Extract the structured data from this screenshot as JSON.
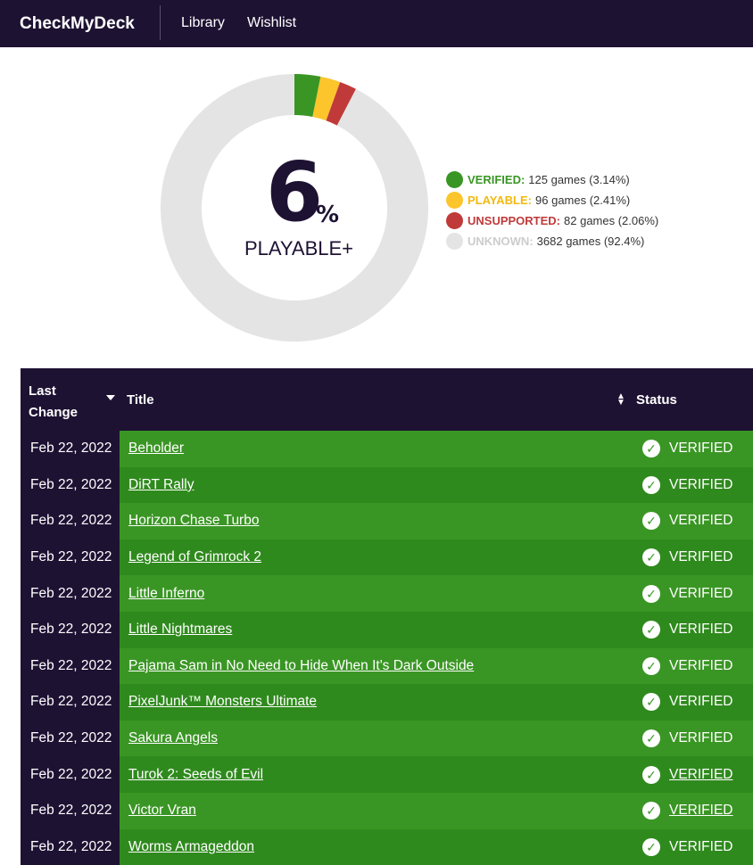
{
  "nav": {
    "brand": "CheckMyDeck",
    "library": "Library",
    "wishlist": "Wishlist"
  },
  "summary": {
    "percent": "6",
    "percent_sign": "%",
    "label": "PLAYABLE+"
  },
  "chart_data": {
    "type": "pie",
    "slices": [
      {
        "name": "VERIFIED",
        "games": 125,
        "percent": 3.14,
        "color": "#3a9624"
      },
      {
        "name": "PLAYABLE",
        "games": 96,
        "percent": 2.41,
        "color": "#fcc52c"
      },
      {
        "name": "UNSUPPORTED",
        "games": 82,
        "percent": 2.06,
        "color": "#c03a3a"
      },
      {
        "name": "UNKNOWN",
        "games": 3682,
        "percent": 92.4,
        "color": "#e4e4e4"
      }
    ],
    "legend_placement": "right"
  },
  "legend": [
    {
      "name": "VERIFIED:",
      "detail": "125 games (3.14%)",
      "color": "#3a9624",
      "text_color": "#3a9624"
    },
    {
      "name": "PLAYABLE:",
      "detail": "96 games (2.41%)",
      "color": "#fcc52c",
      "text_color": "#f2b90f"
    },
    {
      "name": "UNSUPPORTED:",
      "detail": "82 games (2.06%)",
      "color": "#c03a3a",
      "text_color": "#c03a3a"
    },
    {
      "name": "UNKNOWN:",
      "detail": "3682 games (92.4%)",
      "color": "#e4e4e4",
      "text_color": "#cccccc"
    }
  ],
  "table": {
    "headers": {
      "last_change_1": "Last",
      "last_change_2": "Change",
      "title": "Title",
      "status": "Status"
    },
    "rows": [
      {
        "date": "Feb 22, 2022",
        "title": "Beholder",
        "status": "VERIFIED",
        "status_underlined": false
      },
      {
        "date": "Feb 22, 2022",
        "title": "DiRT Rally",
        "status": "VERIFIED",
        "status_underlined": false
      },
      {
        "date": "Feb 22, 2022",
        "title": "Horizon Chase Turbo",
        "status": "VERIFIED",
        "status_underlined": false
      },
      {
        "date": "Feb 22, 2022",
        "title": "Legend of Grimrock 2",
        "status": "VERIFIED",
        "status_underlined": false
      },
      {
        "date": "Feb 22, 2022",
        "title": "Little Inferno",
        "status": "VERIFIED",
        "status_underlined": false
      },
      {
        "date": "Feb 22, 2022",
        "title": "Little Nightmares",
        "status": "VERIFIED",
        "status_underlined": false
      },
      {
        "date": "Feb 22, 2022",
        "title": "Pajama Sam in No Need to Hide When It's Dark Outside",
        "status": "VERIFIED",
        "status_underlined": false
      },
      {
        "date": "Feb 22, 2022",
        "title": "PixelJunk™ Monsters Ultimate",
        "status": "VERIFIED",
        "status_underlined": false
      },
      {
        "date": "Feb 22, 2022",
        "title": "Sakura Angels",
        "status": "VERIFIED",
        "status_underlined": false
      },
      {
        "date": "Feb 22, 2022",
        "title": "Turok 2: Seeds of Evil",
        "status": "VERIFIED",
        "status_underlined": true
      },
      {
        "date": "Feb 22, 2022",
        "title": "Victor Vran",
        "status": "VERIFIED",
        "status_underlined": true
      },
      {
        "date": "Feb 22, 2022",
        "title": "Worms Armageddon",
        "status": "VERIFIED",
        "status_underlined": false
      }
    ]
  }
}
